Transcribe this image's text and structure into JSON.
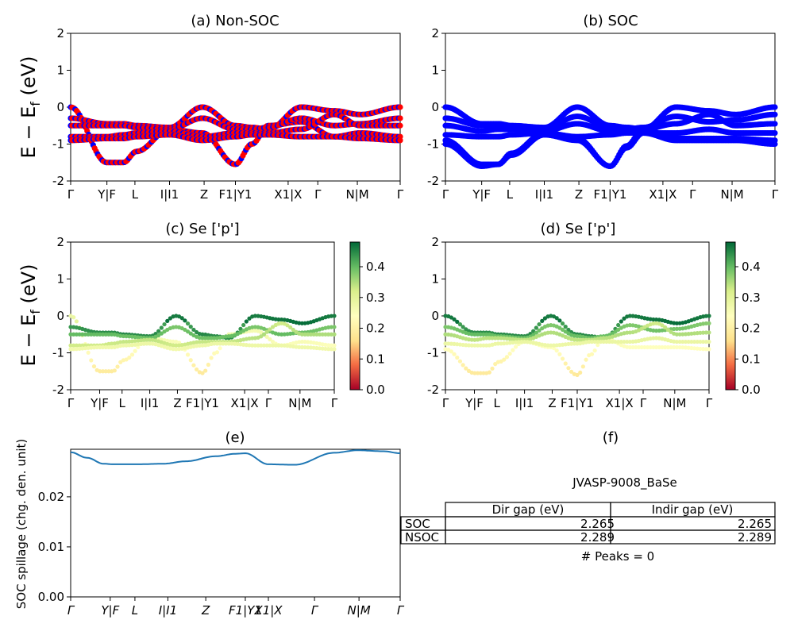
{
  "colors": {
    "red": "#ff0000",
    "blue": "#0000ff",
    "line": "#1f77b4",
    "colormap": [
      "#a50026",
      "#f46d43",
      "#fee08b",
      "#ffffbf",
      "#d9ef8b",
      "#66bd63",
      "#006837"
    ]
  },
  "kpath_labels": [
    "Γ",
    "Y|F",
    "L",
    "I|I1",
    "Z",
    "F1|Y1",
    "X1|X",
    "Γ",
    "N|M",
    "Γ"
  ],
  "ylabel_band": "E − E_f (eV)",
  "ylabel_spillage": "SOC spillage (chg. den. unit)",
  "panel_a": {
    "title": "(a) Non-SOC"
  },
  "panel_b": {
    "title": "(b) SOC"
  },
  "panel_c": {
    "title": "(c)  Se ['p']"
  },
  "panel_d": {
    "title": "(d) Se ['p']"
  },
  "panel_e": {
    "title": "(e)"
  },
  "panel_f": {
    "title": "(f)",
    "material": "JVASP-9008_BaSe",
    "columns": [
      "Dir gap (eV)",
      "Indir gap (eV)"
    ],
    "rows": [
      {
        "label": "SOC",
        "dir": "2.265",
        "indir": "2.265"
      },
      {
        "label": "NSOC",
        "dir": "2.289",
        "indir": "2.289"
      }
    ],
    "peaks": "# Peaks = 0"
  },
  "chart_data": [
    {
      "type": "line",
      "panel": "a",
      "title": "(a) Non-SOC",
      "ylabel": "E − E_f (eV)",
      "ylim": [
        -2,
        2
      ],
      "yticks": [
        -2,
        -1,
        0,
        1,
        2
      ],
      "series_colors": [
        "red",
        "blue"
      ],
      "x": [
        0,
        0.11,
        0.16,
        0.2,
        0.3,
        0.4,
        0.5,
        0.55,
        0.6,
        0.7,
        0.8,
        0.88,
        1.0
      ],
      "series": [
        {
          "values": [
            0,
            -1.5,
            -1.5,
            -1.2,
            -0.6,
            -0.7,
            -1.55,
            -1.0,
            -0.5,
            -0.4,
            -0.8,
            -0.7,
            -0.8
          ]
        },
        {
          "values": [
            -0.3,
            -0.45,
            -0.45,
            -0.5,
            -0.55,
            0,
            -0.5,
            -0.55,
            -0.6,
            0,
            -0.1,
            -0.2,
            0
          ]
        },
        {
          "values": [
            -0.5,
            -0.5,
            -0.5,
            -0.55,
            -0.6,
            -0.3,
            -0.6,
            -0.6,
            -0.55,
            -0.3,
            -0.5,
            -0.45,
            -0.3
          ]
        },
        {
          "values": [
            -0.8,
            -0.8,
            -0.75,
            -0.7,
            -0.65,
            -0.8,
            -0.7,
            -0.7,
            -0.7,
            -0.6,
            -0.2,
            -0.5,
            -0.5
          ]
        },
        {
          "values": [
            -0.9,
            -0.85,
            -0.85,
            -0.8,
            -0.75,
            -0.9,
            -0.8,
            -0.75,
            -0.75,
            -0.8,
            -0.8,
            -0.85,
            -0.9
          ]
        }
      ]
    },
    {
      "type": "line",
      "panel": "b",
      "title": "(b) SOC",
      "ylim": [
        -2,
        2
      ],
      "yticks": [
        -2,
        -1,
        0,
        1,
        2
      ],
      "series_colors": [
        "blue"
      ],
      "x": [
        0,
        0.11,
        0.16,
        0.2,
        0.3,
        0.4,
        0.5,
        0.55,
        0.6,
        0.7,
        0.8,
        0.88,
        1.0
      ],
      "series": [
        {
          "values": [
            -0.9,
            -1.55,
            -1.55,
            -1.25,
            -0.7,
            -0.85,
            -1.6,
            -1.05,
            -0.6,
            -0.85,
            -0.85,
            -0.85,
            -0.9
          ]
        },
        {
          "values": [
            -1.0,
            -1.6,
            -1.55,
            -1.3,
            -0.75,
            -0.9,
            -1.6,
            -1.1,
            -0.7,
            -0.9,
            -0.9,
            -0.9,
            -1.0
          ]
        },
        {
          "values": [
            0,
            -0.45,
            -0.45,
            -0.5,
            -0.55,
            0,
            -0.5,
            -0.55,
            -0.6,
            0,
            -0.1,
            -0.2,
            0
          ]
        },
        {
          "values": [
            -0.3,
            -0.5,
            -0.5,
            -0.55,
            -0.6,
            -0.25,
            -0.55,
            -0.6,
            -0.55,
            -0.25,
            -0.4,
            -0.35,
            -0.2
          ]
        },
        {
          "values": [
            -0.5,
            -0.65,
            -0.6,
            -0.6,
            -0.65,
            -0.45,
            -0.65,
            -0.65,
            -0.6,
            -0.45,
            -0.2,
            -0.5,
            -0.45
          ]
        },
        {
          "values": [
            -0.75,
            -0.8,
            -0.8,
            -0.75,
            -0.7,
            -0.8,
            -0.75,
            -0.7,
            -0.7,
            -0.7,
            -0.6,
            -0.7,
            -0.7
          ]
        }
      ]
    },
    {
      "type": "scatter",
      "panel": "c",
      "title": "(c)  Se ['p']",
      "ylabel": "E − E_f (eV)",
      "ylim": [
        -2,
        2
      ],
      "colorbar": {
        "min": 0.0,
        "max": 0.4,
        "ticks": [
          0.0,
          0.1,
          0.2,
          0.3,
          0.4
        ]
      },
      "x": [
        0,
        0.11,
        0.16,
        0.2,
        0.3,
        0.4,
        0.5,
        0.55,
        0.6,
        0.7,
        0.8,
        0.88,
        1.0
      ],
      "series": [
        {
          "values": [
            0,
            -1.5,
            -1.5,
            -1.2,
            -0.6,
            -0.7,
            -1.55,
            -1.0,
            -0.5,
            -0.4,
            -0.8,
            -0.7,
            -0.8
          ],
          "weight": 0.27
        },
        {
          "values": [
            -0.3,
            -0.45,
            -0.45,
            -0.5,
            -0.55,
            0,
            -0.5,
            -0.55,
            -0.6,
            0,
            -0.1,
            -0.2,
            0
          ],
          "weight": 0.45
        },
        {
          "values": [
            -0.5,
            -0.5,
            -0.5,
            -0.55,
            -0.6,
            -0.3,
            -0.6,
            -0.6,
            -0.55,
            -0.3,
            -0.5,
            -0.45,
            -0.3
          ],
          "weight": 0.4
        },
        {
          "values": [
            -0.8,
            -0.8,
            -0.75,
            -0.7,
            -0.65,
            -0.8,
            -0.7,
            -0.7,
            -0.7,
            -0.6,
            -0.2,
            -0.5,
            -0.5
          ],
          "weight": 0.35
        },
        {
          "values": [
            -0.9,
            -0.85,
            -0.85,
            -0.8,
            -0.75,
            -0.9,
            -0.8,
            -0.75,
            -0.75,
            -0.8,
            -0.8,
            -0.85,
            -0.9
          ],
          "weight": 0.3
        }
      ]
    },
    {
      "type": "scatter",
      "panel": "d",
      "title": "(d) Se ['p']",
      "ylim": [
        -2,
        2
      ],
      "colorbar": {
        "min": 0.0,
        "max": 0.4,
        "ticks": [
          0.0,
          0.1,
          0.2,
          0.3,
          0.4
        ]
      },
      "x": [
        0,
        0.11,
        0.16,
        0.2,
        0.3,
        0.4,
        0.5,
        0.55,
        0.6,
        0.7,
        0.8,
        0.88,
        1.0
      ],
      "series": [
        {
          "values": [
            -0.9,
            -1.55,
            -1.55,
            -1.25,
            -0.7,
            -0.85,
            -1.6,
            -1.05,
            -0.6,
            -0.85,
            -0.85,
            -0.85,
            -0.9
          ],
          "weight": 0.27
        },
        {
          "values": [
            0,
            -0.45,
            -0.45,
            -0.5,
            -0.55,
            0,
            -0.5,
            -0.55,
            -0.6,
            0,
            -0.1,
            -0.2,
            0
          ],
          "weight": 0.45
        },
        {
          "values": [
            -0.3,
            -0.5,
            -0.5,
            -0.55,
            -0.6,
            -0.25,
            -0.55,
            -0.6,
            -0.55,
            -0.25,
            -0.4,
            -0.35,
            -0.2
          ],
          "weight": 0.4
        },
        {
          "values": [
            -0.5,
            -0.65,
            -0.6,
            -0.6,
            -0.65,
            -0.45,
            -0.65,
            -0.65,
            -0.6,
            -0.45,
            -0.2,
            -0.5,
            -0.45
          ],
          "weight": 0.35
        },
        {
          "values": [
            -0.75,
            -0.8,
            -0.8,
            -0.75,
            -0.7,
            -0.8,
            -0.75,
            -0.7,
            -0.7,
            -0.7,
            -0.6,
            -0.7,
            -0.7
          ],
          "weight": 0.3
        }
      ]
    },
    {
      "type": "line",
      "panel": "e",
      "title": "(e)",
      "ylabel": "SOC spillage (chg. den. unit)",
      "ylim": [
        0,
        0.0295
      ],
      "yticks": [
        0.0,
        0.01,
        0.02
      ],
      "ytick_labels": [
        "0.00",
        "0.01",
        "0.02"
      ],
      "x": [
        0,
        0.05,
        0.1,
        0.13,
        0.2,
        0.28,
        0.35,
        0.44,
        0.5,
        0.53,
        0.6,
        0.68,
        0.8,
        0.87,
        0.95,
        1.0
      ],
      "values": [
        0.0289,
        0.0278,
        0.0266,
        0.0265,
        0.0265,
        0.0266,
        0.0271,
        0.0281,
        0.0286,
        0.0287,
        0.0265,
        0.0264,
        0.0288,
        0.0293,
        0.0291,
        0.0287
      ]
    }
  ]
}
